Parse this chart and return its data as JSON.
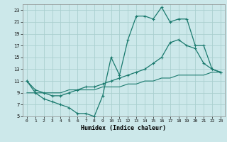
{
  "xlabel": "Humidex (Indice chaleur)",
  "background_color": "#cce8ea",
  "grid_color": "#aacfcf",
  "line_color": "#1a7a6e",
  "xlim": [
    -0.5,
    23.5
  ],
  "ylim": [
    5,
    24
  ],
  "xticks": [
    0,
    1,
    2,
    3,
    4,
    5,
    6,
    7,
    8,
    9,
    10,
    11,
    12,
    13,
    14,
    15,
    16,
    17,
    18,
    19,
    20,
    21,
    22,
    23
  ],
  "yticks": [
    5,
    7,
    9,
    11,
    13,
    15,
    17,
    19,
    21,
    23
  ],
  "line1_x": [
    0,
    1,
    2,
    3,
    4,
    5,
    6,
    7,
    8,
    9,
    10,
    11,
    12,
    13,
    14,
    15,
    16,
    17,
    18,
    19,
    20,
    21,
    22,
    23
  ],
  "line1_y": [
    11,
    9,
    8,
    7.5,
    7,
    6.5,
    5.5,
    5.5,
    5.0,
    8.5,
    15,
    12,
    18,
    22,
    22,
    21.5,
    23.5,
    21,
    21.5,
    21.5,
    17,
    17,
    13,
    12.5
  ],
  "line2_x": [
    0,
    1,
    2,
    3,
    4,
    5,
    6,
    7,
    8,
    9,
    10,
    11,
    12,
    13,
    14,
    15,
    16,
    17,
    18,
    19,
    20,
    21,
    22,
    23
  ],
  "line2_y": [
    11,
    9.5,
    9,
    8.5,
    8.5,
    9,
    9.5,
    10,
    10,
    10.5,
    11,
    11.5,
    12,
    12.5,
    13,
    14,
    15,
    17.5,
    18,
    17,
    16.5,
    14,
    13,
    12.5
  ],
  "line3_x": [
    0,
    1,
    2,
    3,
    4,
    5,
    6,
    7,
    8,
    9,
    10,
    11,
    12,
    13,
    14,
    15,
    16,
    17,
    18,
    19,
    20,
    21,
    22,
    23
  ],
  "line3_y": [
    9,
    9,
    9,
    9,
    9,
    9.5,
    9.5,
    9.5,
    9.5,
    10,
    10,
    10,
    10.5,
    10.5,
    11,
    11,
    11.5,
    11.5,
    12,
    12,
    12,
    12,
    12.5,
    12.5
  ]
}
